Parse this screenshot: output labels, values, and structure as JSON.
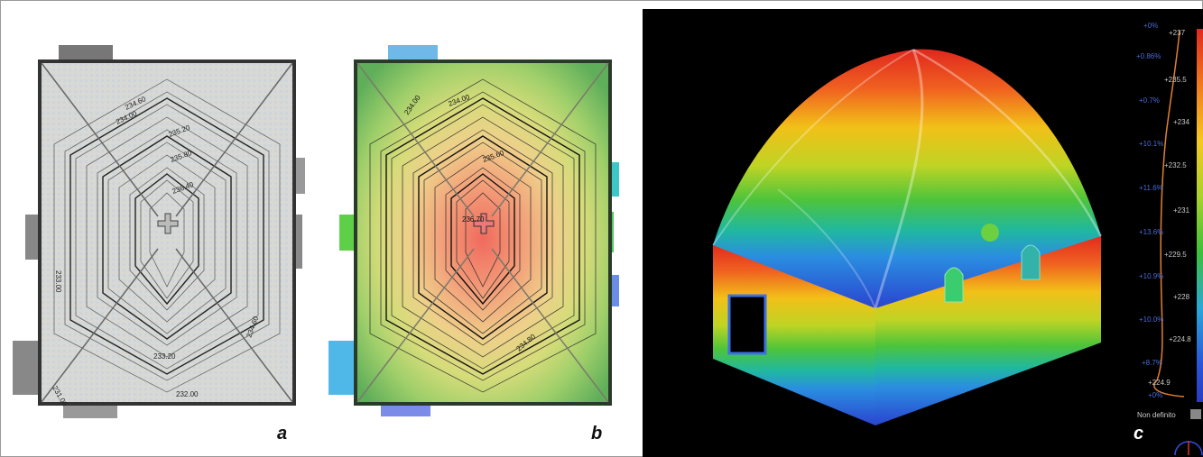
{
  "panels": {
    "a": {
      "letter": "a"
    },
    "b": {
      "letter": "b"
    },
    "c": {
      "letter": "c"
    }
  },
  "contour_labels_a": [
    "234.00",
    "234.60",
    "235.20",
    "235.80",
    "236.40",
    "233.00",
    "234.60",
    "233.20",
    "231.00",
    "232.00"
  ],
  "contour_labels_b": [
    "234.00",
    "234.00",
    "235.60",
    "236.70",
    "234.80"
  ],
  "scale": {
    "values": [
      "+237",
      "+235.5",
      "+234",
      "+232.5",
      "+231",
      "+229.5",
      "+228",
      "+224.8",
      "+224.9"
    ],
    "percents": [
      "+0%",
      "+0.86%",
      "+0.7%",
      "+10.1%",
      "+11.6%",
      "+13.6%",
      "+10.9%",
      "+10.0%",
      "+8.7%",
      "+0%"
    ],
    "undefined_label": "Non definito"
  },
  "colors": {
    "panel_c_bg": "#000000",
    "profile_line": "#e08030"
  }
}
